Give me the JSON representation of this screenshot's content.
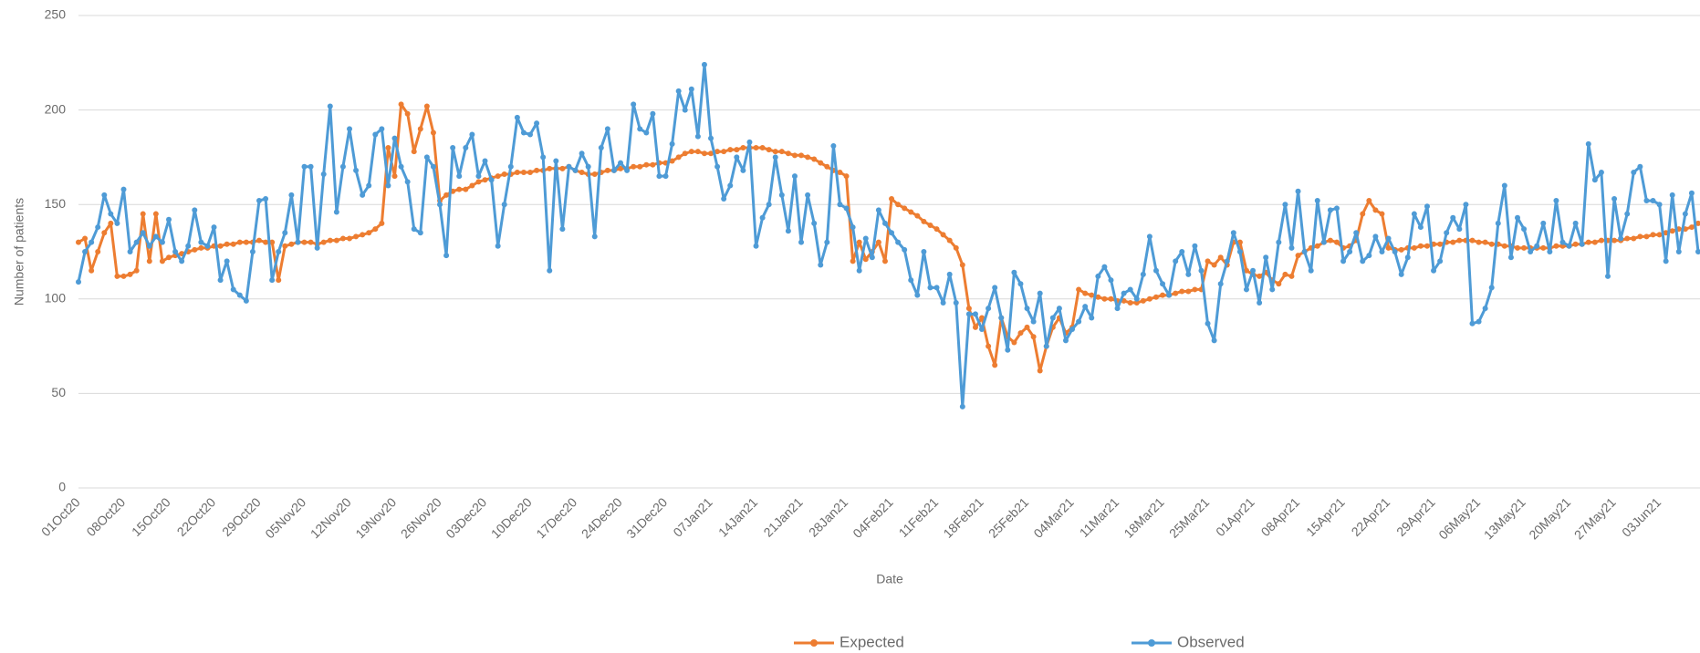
{
  "chart_data": {
    "type": "line",
    "y_label": "Number of patients",
    "x_label": "Date",
    "ylim": [
      0,
      250
    ],
    "yticks": [
      0,
      50,
      100,
      150,
      200,
      250
    ],
    "grid": true,
    "legend": "bottom",
    "categories": [
      "01Oct20",
      null,
      null,
      null,
      null,
      null,
      null,
      "08Oct20",
      null,
      null,
      null,
      null,
      null,
      null,
      "15Oct20",
      null,
      null,
      null,
      null,
      null,
      null,
      "22Oct20",
      null,
      null,
      null,
      null,
      null,
      null,
      "29Oct20",
      null,
      null,
      null,
      null,
      null,
      null,
      "05Nov20",
      null,
      null,
      null,
      null,
      null,
      null,
      "12Nov20",
      null,
      null,
      null,
      null,
      null,
      null,
      "19Nov20",
      null,
      null,
      null,
      null,
      null,
      null,
      "26Nov20",
      null,
      null,
      null,
      null,
      null,
      null,
      "03Dec20",
      null,
      null,
      null,
      null,
      null,
      null,
      "10Dec20",
      null,
      null,
      null,
      null,
      null,
      null,
      "17Dec20",
      null,
      null,
      null,
      null,
      null,
      null,
      "24Dec20",
      null,
      null,
      null,
      null,
      null,
      null,
      "31Dec20",
      null,
      null,
      null,
      null,
      null,
      null,
      "07Jan21",
      null,
      null,
      null,
      null,
      null,
      null,
      "14Jan21",
      null,
      null,
      null,
      null,
      null,
      null,
      "21Jan21",
      null,
      null,
      null,
      null,
      null,
      null,
      "28Jan21",
      null,
      null,
      null,
      null,
      null,
      null,
      "04Feb21",
      null,
      null,
      null,
      null,
      null,
      null,
      "11Feb21",
      null,
      null,
      null,
      null,
      null,
      null,
      "18Feb21",
      null,
      null,
      null,
      null,
      null,
      null,
      "25Feb21",
      null,
      null,
      null,
      null,
      null,
      null,
      "04Mar21",
      null,
      null,
      null,
      null,
      null,
      null,
      "11Mar21",
      null,
      null,
      null,
      null,
      null,
      null,
      "18Mar21",
      null,
      null,
      null,
      null,
      null,
      null,
      "25Mar21",
      null,
      null,
      null,
      null,
      null,
      null,
      "01Apr21",
      null,
      null,
      null,
      null,
      null,
      null,
      "08Apr21",
      null,
      null,
      null,
      null,
      null,
      null,
      "15Apr21",
      null,
      null,
      null,
      null,
      null,
      null,
      "22Apr21",
      null,
      null,
      null,
      null,
      null,
      null,
      "29Apr21",
      null,
      null,
      null,
      null,
      null,
      null,
      "06May21",
      null,
      null,
      null,
      null,
      null,
      null,
      "13May21",
      null,
      null,
      null,
      null,
      null,
      null,
      "20May21",
      null,
      null,
      null,
      null,
      null,
      null,
      "27May21",
      null,
      null,
      null,
      null,
      null,
      null,
      "03Jun21",
      null,
      null,
      null,
      null,
      null,
      null
    ],
    "series": [
      {
        "name": "Expected",
        "color": "#ed7d31",
        "values": [
          130,
          132,
          115,
          125,
          135,
          140,
          112,
          112,
          113,
          115,
          145,
          120,
          145,
          120,
          122,
          123,
          124,
          125,
          126,
          127,
          127,
          128,
          128,
          129,
          129,
          130,
          130,
          130,
          131,
          130,
          130,
          110,
          128,
          129,
          130,
          130,
          130,
          129,
          130,
          131,
          131,
          132,
          132,
          133,
          134,
          135,
          137,
          140,
          180,
          165,
          203,
          198,
          178,
          190,
          202,
          188,
          152,
          155,
          157,
          158,
          158,
          160,
          162,
          163,
          164,
          165,
          166,
          166,
          167,
          167,
          167,
          168,
          168,
          169,
          169,
          169,
          170,
          168,
          167,
          166,
          166,
          167,
          168,
          168,
          169,
          169,
          170,
          170,
          171,
          171,
          172,
          172,
          173,
          175,
          177,
          178,
          178,
          177,
          177,
          178,
          178,
          179,
          179,
          180,
          180,
          180,
          180,
          179,
          178,
          178,
          177,
          176,
          176,
          175,
          174,
          172,
          170,
          168,
          167,
          165,
          120,
          130,
          121,
          125,
          130,
          120,
          153,
          150,
          148,
          146,
          144,
          141,
          139,
          137,
          134,
          131,
          127,
          118,
          95,
          85,
          90,
          75,
          65,
          90,
          80,
          77,
          82,
          85,
          80,
          62,
          75,
          85,
          90,
          82,
          85,
          105,
          103,
          102,
          101,
          100,
          100,
          99,
          99,
          98,
          98,
          99,
          100,
          101,
          102,
          102,
          103,
          104,
          104,
          105,
          105,
          120,
          118,
          122,
          118,
          130,
          130,
          115,
          113,
          112,
          114,
          110,
          108,
          113,
          112,
          123,
          125,
          127,
          128,
          130,
          131,
          130,
          127,
          128,
          131,
          145,
          152,
          147,
          145,
          127,
          126,
          126,
          127,
          127,
          128,
          128,
          129,
          129,
          130,
          130,
          131,
          131,
          131,
          130,
          130,
          129,
          129,
          128,
          128,
          127,
          127,
          127,
          127,
          127,
          127,
          128,
          128,
          128,
          129,
          129,
          130,
          130,
          131,
          131,
          131,
          131,
          132,
          132,
          133,
          133,
          134,
          134,
          135,
          136,
          137,
          137,
          138,
          140
        ]
      },
      {
        "name": "Observed",
        "color": "#4e9bd6",
        "values": [
          109,
          125,
          130,
          138,
          155,
          145,
          140,
          158,
          125,
          130,
          135,
          128,
          133,
          130,
          142,
          125,
          120,
          128,
          147,
          130,
          128,
          138,
          110,
          120,
          105,
          102,
          99,
          125,
          152,
          153,
          110,
          125,
          135,
          155,
          130,
          170,
          170,
          127,
          166,
          202,
          146,
          170,
          190,
          168,
          155,
          160,
          187,
          190,
          160,
          185,
          170,
          162,
          137,
          135,
          175,
          170,
          150,
          123,
          180,
          165,
          180,
          187,
          165,
          173,
          163,
          128,
          150,
          170,
          196,
          188,
          187,
          193,
          175,
          115,
          173,
          137,
          170,
          168,
          177,
          170,
          133,
          180,
          190,
          168,
          172,
          168,
          203,
          190,
          188,
          198,
          165,
          165,
          182,
          210,
          200,
          211,
          186,
          224,
          185,
          170,
          153,
          160,
          175,
          168,
          183,
          128,
          143,
          150,
          175,
          155,
          136,
          165,
          130,
          155,
          140,
          118,
          130,
          181,
          150,
          148,
          138,
          115,
          132,
          122,
          147,
          140,
          135,
          130,
          126,
          110,
          102,
          125,
          106,
          106,
          98,
          113,
          98,
          43,
          92,
          92,
          84,
          95,
          106,
          90,
          73,
          114,
          108,
          95,
          88,
          103,
          75,
          90,
          95,
          78,
          84,
          88,
          96,
          90,
          112,
          117,
          110,
          95,
          103,
          105,
          100,
          113,
          133,
          115,
          108,
          102,
          120,
          125,
          113,
          128,
          115,
          87,
          78,
          108,
          120,
          135,
          125,
          105,
          115,
          98,
          122,
          105,
          130,
          150,
          127,
          157,
          125,
          115,
          152,
          130,
          147,
          148,
          120,
          125,
          135,
          120,
          123,
          133,
          125,
          132,
          125,
          113,
          122,
          145,
          138,
          149,
          115,
          120,
          135,
          143,
          137,
          150,
          87,
          88,
          95,
          106,
          140,
          160,
          122,
          143,
          137,
          125,
          128,
          140,
          125,
          152,
          130,
          128,
          140,
          129,
          182,
          163,
          167,
          112,
          153,
          132,
          145,
          167,
          170,
          152,
          152,
          150,
          120,
          155,
          125,
          145,
          156,
          125
        ]
      }
    ]
  }
}
